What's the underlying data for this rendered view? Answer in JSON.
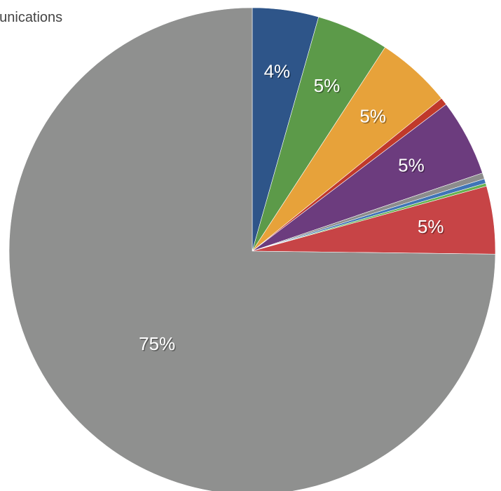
{
  "chart_data": {
    "type": "pie",
    "legend_fragment": "nunications",
    "slices": [
      {
        "value": 4.4,
        "color": "#2e5589",
        "label": "4%"
      },
      {
        "value": 4.8,
        "color": "#5c9a49",
        "label": "5%"
      },
      {
        "value": 5.0,
        "color": "#e7a23a",
        "label": "5%"
      },
      {
        "value": 0.5,
        "color": "#c0392b",
        "label": ""
      },
      {
        "value": 5.1,
        "color": "#6c3c7e",
        "label": "5%"
      },
      {
        "value": 0.4,
        "color": "#8c8c8c",
        "label": ""
      },
      {
        "value": 0.3,
        "color": "#3f74b6",
        "label": ""
      },
      {
        "value": 0.2,
        "color": "#66b24f",
        "label": ""
      },
      {
        "value": 4.5,
        "color": "#c74446",
        "label": "5%"
      },
      {
        "value": 74.8,
        "color": "#8f908f",
        "label": "75%"
      }
    ]
  }
}
